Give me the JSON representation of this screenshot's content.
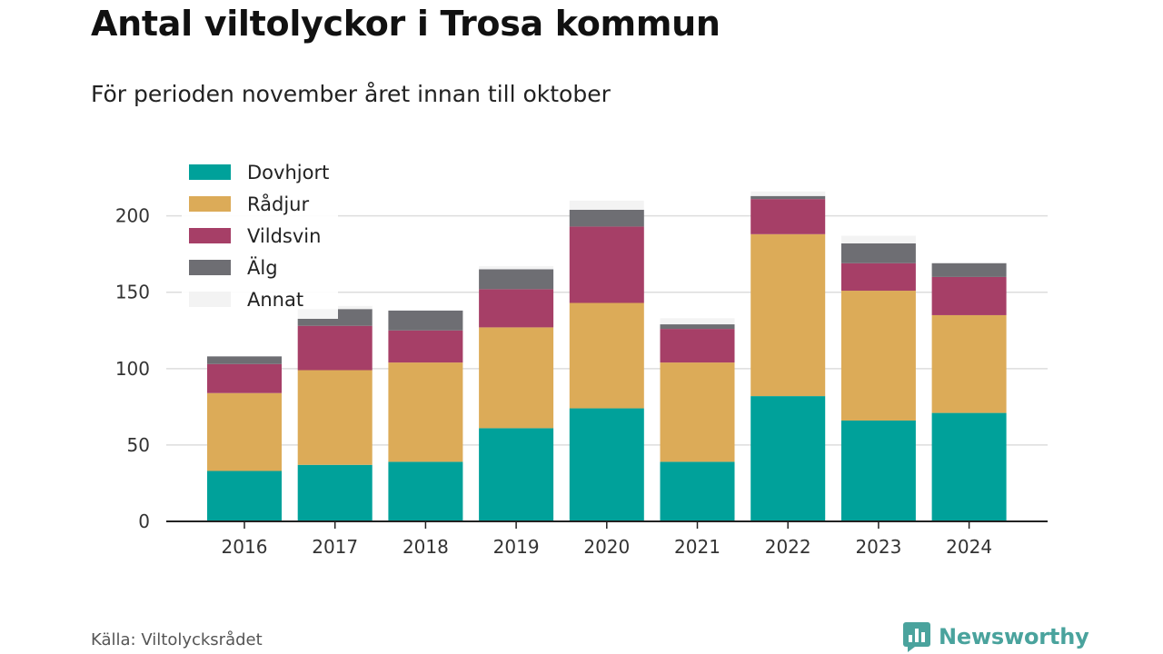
{
  "header": {
    "title": "Antal viltolyckor i Trosa kommun",
    "subtitle": "För perioden november året innan till oktober"
  },
  "footer": {
    "source": "Källa: Viltolycksrådet",
    "brand": "Newsworthy"
  },
  "colors": {
    "Dovhjort": "#00a19a",
    "Rådjur": "#dcab58",
    "Vildsvin": "#a63f67",
    "Älg": "#6e6e73",
    "Annat": "#f3f3f3"
  },
  "legend": {
    "placement": "top-left",
    "items": [
      "Dovhjort",
      "Rådjur",
      "Vildsvin",
      "Älg",
      "Annat"
    ]
  },
  "chart_data": {
    "type": "bar",
    "stacked": true,
    "title": "Antal viltolyckor i Trosa kommun",
    "subtitle": "För perioden november året innan till oktober",
    "xlabel": "",
    "ylabel": "",
    "ylim": [
      0,
      220
    ],
    "yticks": [
      0,
      50,
      100,
      150,
      200
    ],
    "grid": true,
    "categories": [
      "2016",
      "2017",
      "2018",
      "2019",
      "2020",
      "2021",
      "2022",
      "2023",
      "2024"
    ],
    "series": [
      {
        "name": "Dovhjort",
        "values": [
          33,
          37,
          39,
          61,
          74,
          39,
          82,
          66,
          71
        ]
      },
      {
        "name": "Rådjur",
        "values": [
          51,
          62,
          65,
          66,
          69,
          65,
          106,
          85,
          64
        ]
      },
      {
        "name": "Vildsvin",
        "values": [
          19,
          29,
          21,
          25,
          50,
          22,
          23,
          18,
          25
        ]
      },
      {
        "name": "Älg",
        "values": [
          5,
          11,
          13,
          13,
          11,
          3,
          2,
          13,
          9
        ]
      },
      {
        "name": "Annat",
        "values": [
          0,
          2,
          0,
          2,
          6,
          4,
          3,
          5,
          0
        ]
      }
    ]
  }
}
